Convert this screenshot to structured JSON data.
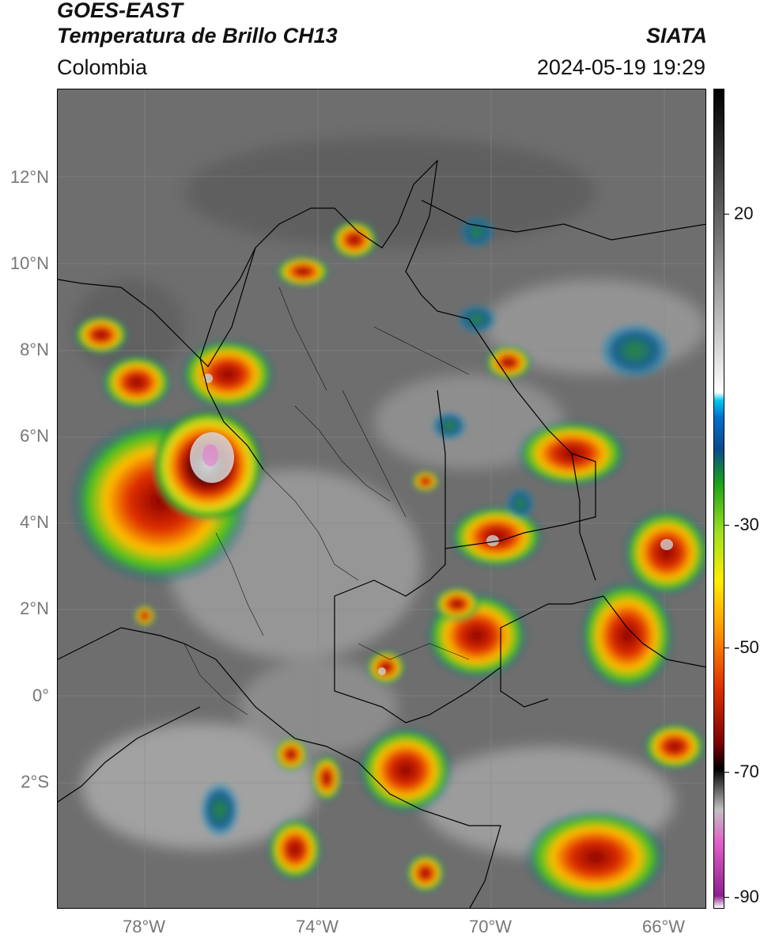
{
  "header": {
    "satellite": "GOES-EAST",
    "product": "Temperatura de Brillo CH13",
    "brand": "SIATA",
    "region": "Colombia",
    "datetime": "2024-05-19 19:29"
  },
  "axes": {
    "lat_labels": [
      "12°N",
      "10°N",
      "8°N",
      "6°N",
      "4°N",
      "2°N",
      "0°",
      "2°S"
    ],
    "lon_labels": [
      "78°W",
      "74°W",
      "70°W",
      "66°W"
    ]
  },
  "colorbar": {
    "ticks": [
      "20",
      "-30",
      "-50",
      "-70",
      "-90"
    ],
    "colors": [
      "#ffffff",
      "#8e1f8e",
      "#e060c8",
      "#c0c0c0",
      "#000000",
      "#7a0000",
      "#e03000",
      "#ff9900",
      "#ffee00",
      "#9be01e",
      "#1aa01a",
      "#0a4a8a",
      "#0070d0",
      "#00c8f0",
      "#ffffff",
      "#808080",
      "#000000"
    ]
  }
}
